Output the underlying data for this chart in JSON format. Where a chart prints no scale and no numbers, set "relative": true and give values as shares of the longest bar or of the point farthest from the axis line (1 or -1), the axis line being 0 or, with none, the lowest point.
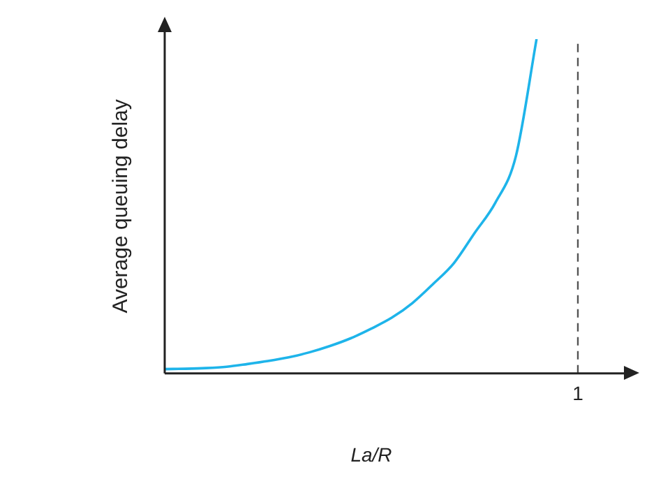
{
  "chart_data": {
    "type": "line",
    "xlabel": "La/R",
    "ylabel": "Average queuing delay",
    "relative": true,
    "categories": [
      null,
      null,
      null,
      null,
      null,
      null,
      null,
      null,
      null,
      null,
      null,
      null,
      null,
      null,
      null,
      null,
      null,
      null,
      null,
      null,
      null
    ],
    "series": [
      {
        "color": "#1eb4ea",
        "values": [
          0.013,
          0.014,
          0.016,
          0.02,
          0.028,
          0.037,
          0.048,
          0.063,
          0.082,
          0.105,
          0.134,
          0.167,
          0.211,
          0.268,
          0.33,
          0.42,
          0.51,
          0.65,
          1,
          null,
          null
        ]
      }
    ],
    "annotations": [
      "1"
    ],
    "grid": false,
    "legend": false,
    "marker": "none",
    "line_style": "solid"
  }
}
